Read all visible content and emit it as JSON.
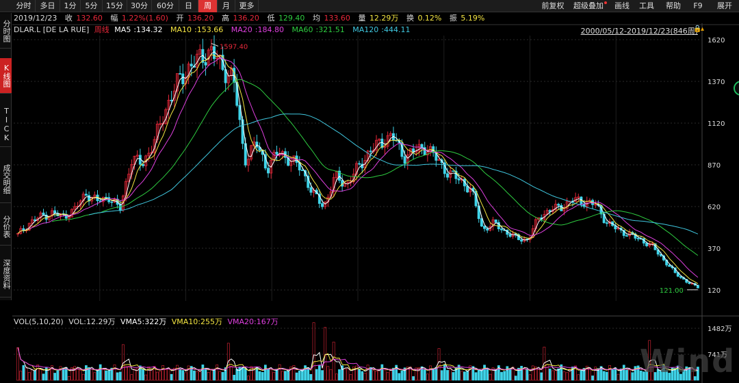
{
  "toolbar": {
    "tabs": [
      "分时",
      "多日",
      "1分",
      "5分",
      "15分",
      "30分",
      "60分",
      "日",
      "周",
      "月",
      "更多"
    ],
    "active_tab": "周",
    "right_tabs": [
      "前复权",
      "超级叠加",
      "画线",
      "工具",
      "帮助",
      "F9",
      "展开"
    ]
  },
  "quote": {
    "date": "2019/12/23",
    "close_label": "收",
    "close": "132.60",
    "change_label": "幅",
    "change": "1.22%(1.60)",
    "open_label": "开",
    "open": "136.20",
    "high_label": "高",
    "high": "136.20",
    "low_label": "低",
    "low": "129.40",
    "avg_label": "均",
    "avg": "133.60",
    "volume_label": "量",
    "volume": "12.29万",
    "turnover_label": "换",
    "turnover": "0.12%",
    "amplitude_label": "振",
    "amplitude": "5.19%"
  },
  "sidebar": {
    "items": [
      "分时图",
      "K线图",
      "TICK",
      "成交明细",
      "分价表",
      "深度资料"
    ],
    "active": "K线图"
  },
  "chart_data": {
    "type": "candlestick",
    "symbol": "DLAR.L [DE LA RUE]",
    "period": "周线",
    "ma_legend": [
      {
        "name": "MA5",
        "value": "134.32",
        "color": "#ffffff"
      },
      {
        "name": "MA10",
        "value": "153.66",
        "color": "#f5e642"
      },
      {
        "name": "MA20",
        "value": "184.80",
        "color": "#e040e0"
      },
      {
        "name": "MA60",
        "value": "321.51",
        "color": "#2ecc40"
      },
      {
        "name": "MA120",
        "value": "444.11",
        "color": "#40c8e0"
      }
    ],
    "range": "2000/05/12-2019/12/23(846周)",
    "price_axis": [
      "1620",
      "1370",
      "1120",
      "870",
      "620",
      "370",
      "120"
    ],
    "ylim": [
      120,
      1620
    ],
    "high_marker": "1597.40",
    "low_marker": "121.00",
    "price_path": [
      450,
      520,
      560,
      580,
      560,
      600,
      700,
      650,
      680,
      600,
      900,
      880,
      1000,
      1200,
      1350,
      1450,
      1500,
      1560,
      1450,
      1400,
      900,
      1000,
      850,
      950,
      900,
      850,
      700,
      620,
      800,
      750,
      850,
      950,
      1000,
      1050,
      920,
      950,
      980,
      900,
      820,
      780,
      720,
      480,
      520,
      470,
      430,
      420,
      560,
      600,
      620,
      660,
      650,
      630,
      520,
      480,
      450,
      420,
      380,
      300,
      220,
      170,
      135
    ],
    "ma120_path": [
      null,
      null,
      null,
      null,
      null,
      null,
      null,
      null,
      580,
      700,
      860,
      980,
      1100,
      1230,
      1290,
      1300,
      1250,
      1150,
      1020,
      960,
      900,
      860,
      850,
      870,
      880,
      880,
      870,
      830,
      790,
      750,
      700,
      650,
      590,
      560,
      560,
      580,
      600,
      600,
      590,
      570,
      540,
      500,
      450,
      420
    ],
    "ma60_path": [
      null,
      null,
      null,
      null,
      620,
      750,
      900,
      1050,
      1200,
      1320,
      1400,
      1320,
      1150,
      1000,
      930,
      900,
      880,
      860,
      820,
      830,
      880,
      940,
      980,
      960,
      900,
      820,
      740,
      660,
      580,
      520,
      480,
      520,
      560,
      590,
      620,
      640,
      650,
      620,
      560,
      500,
      420,
      340
    ],
    "volume_legend": {
      "label": "VOL(5,10,20)",
      "vol": "VOL:12.29万",
      "vma5": "VMA5:322万",
      "vma10": "VMA10:255万",
      "vma20": "VMA20:167万"
    },
    "volume_axis": [
      "1482万",
      "741万"
    ],
    "volume_ylim": [
      0,
      1482
    ]
  },
  "colors": {
    "up": "#e8283a",
    "down": "#3fd3e8",
    "grid": "#2a2a2a",
    "active_tab": "#d33"
  },
  "watermark": "Wind",
  "icons": {
    "lock": "lock-icon"
  }
}
